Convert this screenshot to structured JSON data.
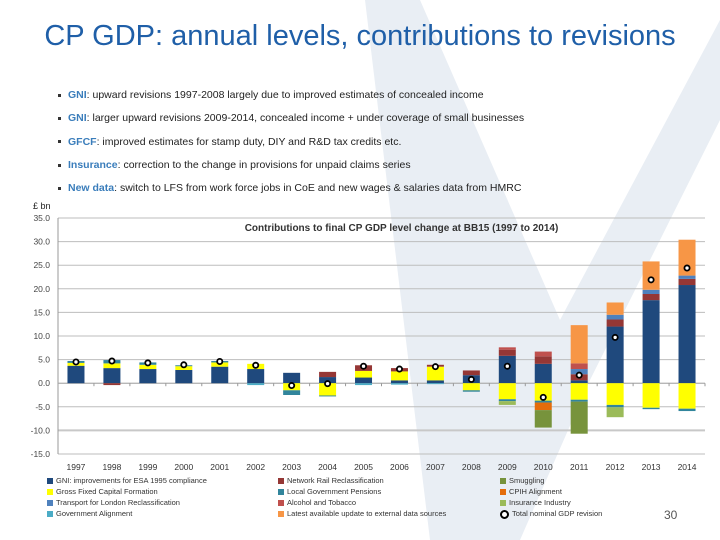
{
  "slide": {
    "title": "CP GDP: annual levels, contributions to revisions",
    "bullets": [
      {
        "keyword": "GNI",
        "text": ": upward revisions 1997-2008 largely due to improved estimates of concealed income"
      },
      {
        "keyword": "GNI",
        "text": ": larger upward revisions 2009-2014, concealed income  + under coverage of small businesses"
      },
      {
        "keyword": "GFCF",
        "text": ": improved estimates for stamp duty, DIY and R&D tax credits etc."
      },
      {
        "keyword": "Insurance",
        "text": ": correction to the change in provisions for unpaid claims series"
      },
      {
        "keyword": "New data",
        "text": ": switch to LFS from work force jobs in CoE and new wages & salaries data from HMRC"
      }
    ],
    "page_number": "30"
  },
  "chart_data": {
    "type": "bar",
    "stacked": true,
    "title": "Contributions to final CP GDP level change at BB15 (1997 to 2014)",
    "ylabel": "£ bn",
    "ylim": [
      -15,
      35
    ],
    "yticks": [
      "35.0",
      "30.0",
      "25.0",
      "20.0",
      "15.0",
      "10.0",
      "5.0",
      "0.0",
      "-5.0",
      "-10.0",
      "-15.0"
    ],
    "ytick_values": [
      35,
      30,
      25,
      20,
      15,
      10,
      5,
      0,
      -5,
      -10,
      -15
    ],
    "grid": true,
    "legend_placement": "bottom",
    "categories": [
      "1997",
      "1998",
      "1999",
      "2000",
      "2001",
      "2002",
      "2003",
      "2004",
      "2005",
      "2006",
      "2007",
      "2008",
      "2009",
      "2010",
      "2011",
      "2012",
      "2013",
      "2014"
    ],
    "series": [
      {
        "name": "GNI: improvements for ESA 1995 compliance",
        "color": "#1f497d",
        "values": [
          3.7,
          3.2,
          3.0,
          2.8,
          3.5,
          3.0,
          2.2,
          1.3,
          1.2,
          0.6,
          0.6,
          1.7,
          5.8,
          4.1,
          0.6,
          12.0,
          17.6,
          20.8
        ]
      },
      {
        "name": "Gross Fixed Capital Formation",
        "color": "#ffff00",
        "values": [
          0.6,
          1.0,
          0.9,
          0.8,
          0.9,
          1.1,
          -1.5,
          -2.6,
          1.4,
          1.9,
          2.9,
          -1.5,
          -3.4,
          -3.7,
          -3.5,
          -4.6,
          -5.2,
          -5.4
        ]
      },
      {
        "name": "Local Government Pensions",
        "color": "#31859c",
        "values": [
          0.4,
          0.7,
          0.5,
          0.2,
          0.3,
          0,
          -1.0,
          -0.2,
          0,
          0,
          0,
          -0.3,
          -0.4,
          -0.4,
          -0.4,
          -0.5,
          -0.3,
          -0.5
        ]
      },
      {
        "name": "Network Rail Reclassification",
        "color": "#953735",
        "values": [
          0,
          -0.4,
          0,
          0,
          0,
          0,
          0,
          1.1,
          1.2,
          0.7,
          0.4,
          1.0,
          1.3,
          1.6,
          1.3,
          1.5,
          1.3,
          1.3
        ]
      },
      {
        "name": "Transport for London Reclassification",
        "color": "#4f81bd",
        "values": [
          0,
          0,
          0,
          0,
          0,
          0,
          0,
          0,
          0,
          0,
          0,
          0,
          0,
          0,
          1.1,
          1.0,
          0.9,
          0.7
        ]
      },
      {
        "name": "Alcohol and Tobacco",
        "color": "#c0504d",
        "values": [
          0,
          0,
          0,
          0,
          0,
          0,
          0,
          0,
          0,
          0,
          0,
          0,
          0.5,
          1.0,
          1.2,
          0,
          0,
          0
        ]
      },
      {
        "name": "Government Alignment",
        "color": "#4bacc6",
        "values": [
          0,
          0,
          0,
          0,
          0,
          -0.4,
          0,
          0,
          -0.4,
          -0.3,
          -0.2,
          0,
          0,
          0,
          0,
          0,
          0,
          0
        ]
      },
      {
        "name": "Latest available update to external data sources",
        "color": "#f79646",
        "values": [
          0,
          0,
          0,
          0,
          0,
          0,
          0,
          0,
          0,
          0,
          0,
          0,
          0,
          0,
          8.1,
          2.6,
          6.0,
          7.6
        ]
      },
      {
        "name": "CPIH Alignment",
        "color": "#e46c0a",
        "values": [
          0,
          0,
          0,
          0,
          0,
          0,
          0,
          0,
          0,
          0,
          0,
          0,
          0,
          -1.6,
          0,
          0,
          0,
          0
        ]
      },
      {
        "name": "Smuggling",
        "color": "#77933c",
        "values": [
          0,
          0,
          0,
          0,
          0,
          0,
          0,
          0,
          0,
          0,
          0,
          0,
          0,
          -3.7,
          -6.8,
          0,
          0,
          0
        ]
      },
      {
        "name": "Insurance Industry",
        "color": "#9bbb59",
        "values": [
          0,
          0,
          0,
          0,
          0,
          0,
          0,
          0,
          0,
          0,
          0,
          0,
          -0.8,
          0,
          0,
          -2.1,
          0,
          0
        ]
      }
    ],
    "total": {
      "name": "Total nominal GDP revision",
      "values": [
        4.5,
        4.7,
        4.3,
        3.9,
        4.6,
        3.8,
        -0.5,
        -0.1,
        3.6,
        3.0,
        3.5,
        0.8,
        3.6,
        -3.0,
        1.7,
        9.7,
        21.9,
        24.4
      ]
    },
    "legend_columns": [
      [
        "GNI: improvements for ESA 1995 compliance",
        "Gross Fixed Capital Formation",
        "Transport for London Reclassification",
        "Government Alignment"
      ],
      [
        "Network Rail Reclassification",
        "Local Government Pensions",
        "Alcohol and Tobacco",
        "Latest available update to external data sources"
      ],
      [
        "Smuggling",
        "CPIH Alignment",
        "Insurance Industry",
        "Total nominal GDP revision"
      ]
    ]
  }
}
